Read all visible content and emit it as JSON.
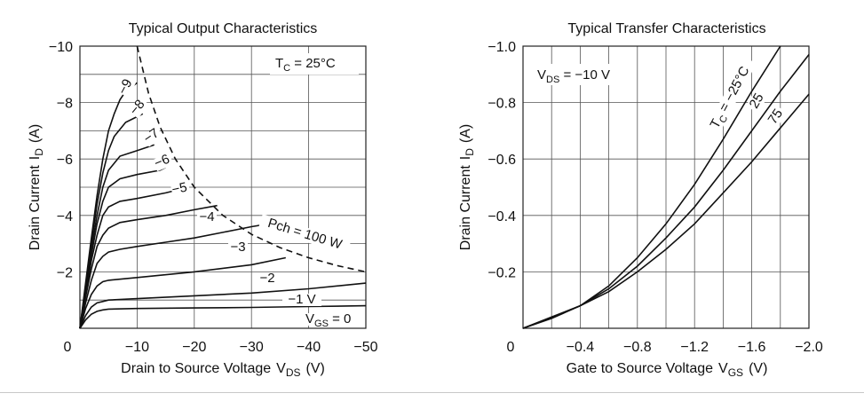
{
  "chart_data": [
    {
      "type": "line",
      "title": "Typical Output Characteristics",
      "xlabel": "Drain to Source Voltage",
      "xlabel_sym": "V",
      "xlabel_sub": "DS",
      "xlabel_unit": "(V)",
      "ylabel": "Drain Current",
      "ylabel_sym": "I",
      "ylabel_sub": "D",
      "ylabel_unit": "(A)",
      "xlim": [
        0,
        -50
      ],
      "ylim": [
        0,
        -10
      ],
      "x_ticks": [
        0,
        -10,
        -20,
        -30,
        -40,
        -50
      ],
      "x_tick_labels": [
        "0",
        "−10",
        "−20",
        "−30",
        "−40",
        "−50"
      ],
      "y_ticks": [
        -2,
        -4,
        -6,
        -8,
        -10
      ],
      "y_tick_labels": [
        "−2",
        "−4",
        "−6",
        "−8",
        "−10"
      ],
      "grid": true,
      "annotation_main": "T",
      "annotation_sub": "C",
      "annotation_rest": " = 25°C",
      "series": [
        {
          "name": "0",
          "label": "V",
          "label_sub": "GS",
          "label_rest": " = 0",
          "x": [
            0,
            -1,
            -2,
            -3,
            -4,
            -5,
            -10,
            -20,
            -30,
            -40,
            -50
          ],
          "y": [
            0,
            -0.3,
            -0.5,
            -0.6,
            -0.65,
            -0.68,
            -0.7,
            -0.72,
            -0.74,
            -0.77,
            -0.8
          ]
        },
        {
          "name": "-1",
          "label": "−1 V",
          "x": [
            0,
            -1,
            -2,
            -3,
            -4,
            -5,
            -10,
            -20,
            -30,
            -40,
            -50
          ],
          "y": [
            0,
            -0.45,
            -0.75,
            -0.9,
            -0.95,
            -1.0,
            -1.05,
            -1.15,
            -1.25,
            -1.4,
            -1.6
          ]
        },
        {
          "name": "-2",
          "label": "−2",
          "x": [
            0,
            -1,
            -2,
            -3,
            -4,
            -5,
            -10,
            -20,
            -30,
            -36
          ],
          "y": [
            0,
            -0.7,
            -1.2,
            -1.5,
            -1.65,
            -1.7,
            -1.8,
            -2.0,
            -2.25,
            -2.5
          ]
        },
        {
          "name": "-3",
          "label": "−3",
          "x": [
            0,
            -1,
            -2,
            -3,
            -4,
            -5,
            -7,
            -10,
            -15,
            -20,
            -25,
            -30,
            -33
          ],
          "y": [
            0,
            -0.9,
            -1.7,
            -2.3,
            -2.55,
            -2.7,
            -2.8,
            -2.9,
            -3.05,
            -3.2,
            -3.4,
            -3.6,
            -3.7
          ]
        },
        {
          "name": "-4",
          "label": "−4",
          "x": [
            0,
            -1,
            -2,
            -3,
            -4,
            -5,
            -7,
            -10,
            -15,
            -20,
            -24
          ],
          "y": [
            0,
            -1.1,
            -2.1,
            -2.9,
            -3.3,
            -3.55,
            -3.75,
            -3.85,
            -4.0,
            -4.2,
            -4.35
          ]
        },
        {
          "name": "-5",
          "label": "−5",
          "x": [
            0,
            -1,
            -2,
            -3,
            -4,
            -5,
            -7,
            -10,
            -15,
            -18
          ],
          "y": [
            0,
            -1.2,
            -2.4,
            -3.3,
            -4.0,
            -4.3,
            -4.5,
            -4.6,
            -4.8,
            -4.95
          ]
        },
        {
          "name": "-6",
          "label": "−6",
          "x": [
            0,
            -1,
            -2,
            -3,
            -4,
            -5,
            -7,
            -10,
            -14,
            -15
          ],
          "y": [
            0,
            -1.3,
            -2.6,
            -3.7,
            -4.5,
            -5.0,
            -5.3,
            -5.45,
            -5.6,
            -5.7
          ]
        },
        {
          "name": "-7",
          "label": "−7",
          "x": [
            0,
            -1,
            -2,
            -3,
            -4,
            -5,
            -7,
            -10,
            -13
          ],
          "y": [
            0,
            -1.4,
            -2.8,
            -4.0,
            -5.0,
            -5.6,
            -6.1,
            -6.3,
            -6.5
          ]
        },
        {
          "name": "-8",
          "label": "−8",
          "x": [
            0,
            -1,
            -2,
            -3,
            -4,
            -5,
            -6,
            -8,
            -10,
            -11
          ],
          "y": [
            0,
            -1.5,
            -3.0,
            -4.4,
            -5.5,
            -6.3,
            -6.8,
            -7.3,
            -7.5,
            -7.6
          ]
        },
        {
          "name": "-9",
          "label": "−9",
          "x": [
            0,
            -1,
            -2,
            -3,
            -4,
            -5,
            -6,
            -7,
            -8,
            -10
          ],
          "y": [
            0,
            -1.6,
            -3.2,
            -4.7,
            -6.0,
            -7.0,
            -7.6,
            -8.1,
            -8.4,
            -8.7
          ]
        }
      ],
      "pch_limit": {
        "label": "Pch = 100 W",
        "x": [
          -10,
          -12,
          -14,
          -16.7,
          -20,
          -25,
          -30,
          -35,
          -40,
          -45,
          -50
        ],
        "y": [
          -10,
          -8.33,
          -7.14,
          -6.0,
          -5.0,
          -4.0,
          -3.33,
          -2.86,
          -2.5,
          -2.22,
          -2.0
        ]
      }
    },
    {
      "type": "line",
      "title": "Typical Transfer Characteristics",
      "xlabel": "Gate to Source Voltage",
      "xlabel_sym": "V",
      "xlabel_sub": "GS",
      "xlabel_unit": "(V)",
      "ylabel": "Drain Current",
      "ylabel_sym": "I",
      "ylabel_sub": "D",
      "ylabel_unit": "(A)",
      "xlim": [
        0,
        -2.0
      ],
      "ylim": [
        0,
        -1.0
      ],
      "x_ticks": [
        0,
        -0.4,
        -0.8,
        -1.2,
        -1.6,
        -2.0
      ],
      "x_tick_labels": [
        "0",
        "−0.4",
        "−0.8",
        "−1.2",
        "−1.6",
        "−2.0"
      ],
      "y_ticks": [
        -0.2,
        -0.4,
        -0.6,
        -0.8,
        -1.0
      ],
      "y_tick_labels": [
        "−0.2",
        "−0.4",
        "−0.6",
        "−0.8",
        "−1.0"
      ],
      "grid": true,
      "annotation_main": "V",
      "annotation_sub": "DS",
      "annotation_rest": " = −10 V",
      "series": [
        {
          "name": "-25",
          "label": "T",
          "label_sub": "C",
          "label_rest": " = −25°C",
          "x": [
            0,
            -0.2,
            -0.4,
            -0.6,
            -0.8,
            -1.0,
            -1.2,
            -1.4,
            -1.6,
            -1.8
          ],
          "y": [
            0,
            -0.035,
            -0.08,
            -0.15,
            -0.25,
            -0.37,
            -0.51,
            -0.67,
            -0.84,
            -1.0
          ]
        },
        {
          "name": "25",
          "label": "25",
          "x": [
            0,
            -0.2,
            -0.4,
            -0.6,
            -0.8,
            -1.0,
            -1.2,
            -1.4,
            -1.6,
            -1.8,
            -2.0
          ],
          "y": [
            0,
            -0.037,
            -0.08,
            -0.14,
            -0.22,
            -0.32,
            -0.43,
            -0.56,
            -0.7,
            -0.84,
            -0.97
          ]
        },
        {
          "name": "75",
          "label": "75",
          "x": [
            0,
            -0.2,
            -0.4,
            -0.6,
            -0.8,
            -1.0,
            -1.2,
            -1.4,
            -1.6,
            -1.8,
            -2.0
          ],
          "y": [
            0,
            -0.04,
            -0.08,
            -0.13,
            -0.2,
            -0.28,
            -0.37,
            -0.48,
            -0.59,
            -0.71,
            -0.83
          ]
        }
      ]
    }
  ]
}
